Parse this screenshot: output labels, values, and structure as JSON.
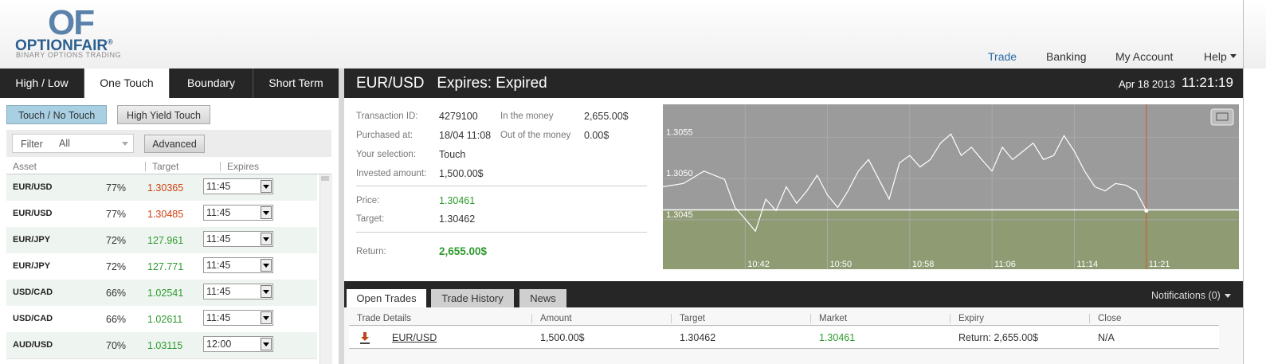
{
  "header": {
    "logo_mark": "OF",
    "brand": "OPTIONFAIR",
    "registered": "®",
    "tagline": "BINARY OPTIONS TRADING",
    "nav": [
      "Trade",
      "Banking",
      "My Account",
      "Help"
    ]
  },
  "left": {
    "tabs": [
      "High / Low",
      "One Touch",
      "Boundary",
      "Short Term"
    ],
    "subtabs": [
      "Touch / No Touch",
      "High Yield Touch"
    ],
    "filter": {
      "label": "Filter",
      "value": "All",
      "button": "Advanced"
    },
    "columns": [
      "Asset",
      "Target",
      "Expires"
    ],
    "rows": [
      {
        "asset": "EUR/USD",
        "payout": "77%",
        "target": "1.30365",
        "target_color": "#d04010",
        "expires": "11:45"
      },
      {
        "asset": "EUR/USD",
        "payout": "77%",
        "target": "1.30485",
        "target_color": "#d04010",
        "expires": "11:45"
      },
      {
        "asset": "EUR/JPY",
        "payout": "72%",
        "target": "127.961",
        "target_color": "#2e9a2e",
        "expires": "11:45"
      },
      {
        "asset": "EUR/JPY",
        "payout": "72%",
        "target": "127.771",
        "target_color": "#2e9a2e",
        "expires": "11:45"
      },
      {
        "asset": "USD/CAD",
        "payout": "66%",
        "target": "1.02541",
        "target_color": "#2e9a2e",
        "expires": "11:45"
      },
      {
        "asset": "USD/CAD",
        "payout": "66%",
        "target": "1.02611",
        "target_color": "#2e9a2e",
        "expires": "11:45"
      },
      {
        "asset": "AUD/USD",
        "payout": "70%",
        "target": "1.03115",
        "target_color": "#2e9a2e",
        "expires": "12:00"
      }
    ]
  },
  "right": {
    "pair": "EUR/USD",
    "expires_label": "Expires:",
    "expires_value": "Expired",
    "date": "Apr 18 2013",
    "time": "11:21:19",
    "details": [
      [
        "Transaction ID:",
        "4279100"
      ],
      [
        "Purchased at:",
        "18/04 11:08"
      ],
      [
        "Your selection:",
        "Touch"
      ],
      [
        "Invested amount:",
        "1,500.00$"
      ]
    ],
    "money": [
      [
        "In the money",
        "2,655.00$"
      ],
      [
        "Out of the money",
        "0.00$"
      ]
    ],
    "price": [
      "Price:",
      "1.30461"
    ],
    "target": [
      "Target:",
      "1.30462"
    ],
    "return": [
      "Return:",
      "2,655.00$"
    ]
  },
  "chart_data": {
    "type": "line",
    "color": "#ffffff",
    "background": "#9b9b9b",
    "target": 1.30462,
    "target_shade": "#8f9b73",
    "expiry": "11:21",
    "expiry_color": "#d4502a",
    "x": [
      "10:34",
      "10:36",
      "10:38",
      "10:40",
      "10:41",
      "10:42",
      "10:43",
      "10:44",
      "10:45",
      "10:46",
      "10:47",
      "10:48",
      "10:49",
      "10:50",
      "10:51",
      "10:52",
      "10:53",
      "10:54",
      "10:55",
      "10:56",
      "10:57",
      "10:58",
      "10:59",
      "11:00",
      "11:01",
      "11:02",
      "11:03",
      "11:04",
      "11:05",
      "11:06",
      "11:07",
      "11:08",
      "11:09",
      "11:10",
      "11:11",
      "11:12",
      "11:13",
      "11:14",
      "11:15",
      "11:16",
      "11:17",
      "11:18",
      "11:19",
      "11:20",
      "11:21"
    ],
    "values": [
      1.3049,
      1.30494,
      1.30509,
      1.30499,
      1.30465,
      1.30451,
      1.30436,
      1.30475,
      1.30461,
      1.3049,
      1.3047,
      1.30485,
      1.30504,
      1.3048,
      1.30465,
      1.30485,
      1.30509,
      1.30523,
      1.30499,
      1.30475,
      1.30519,
      1.30528,
      1.30514,
      1.30523,
      1.30543,
      1.30554,
      1.30528,
      1.30538,
      1.30523,
      1.30509,
      1.30538,
      1.30523,
      1.30533,
      1.30543,
      1.30523,
      1.30528,
      1.30552,
      1.30533,
      1.30509,
      1.3049,
      1.30485,
      1.30494,
      1.30492,
      1.30485,
      1.30461
    ],
    "xlim": [
      "10:34",
      "11:30"
    ],
    "xticks": [
      "10:42",
      "10:50",
      "10:58",
      "11:06",
      "11:14",
      "11:21"
    ],
    "ylim": [
      1.3039,
      1.3059
    ],
    "yticks": [
      {
        "value": 1.3045,
        "label": "1.3045"
      },
      {
        "value": 1.305,
        "label": "1.3050"
      },
      {
        "value": 1.3055,
        "label": "1.3055"
      }
    ],
    "grid": true
  },
  "trades": {
    "tabs": [
      "Open Trades",
      "Trade History",
      "News"
    ],
    "notifications": "Notifications (0)",
    "columns": [
      "Trade Details",
      "Amount",
      "Target",
      "Market",
      "Expiry",
      "Close"
    ],
    "rows": [
      [
        "EUR/USD",
        "1,500.00$",
        "1.30462",
        "1.30461",
        "Return: 2,655.00$",
        "N/A"
      ]
    ]
  }
}
